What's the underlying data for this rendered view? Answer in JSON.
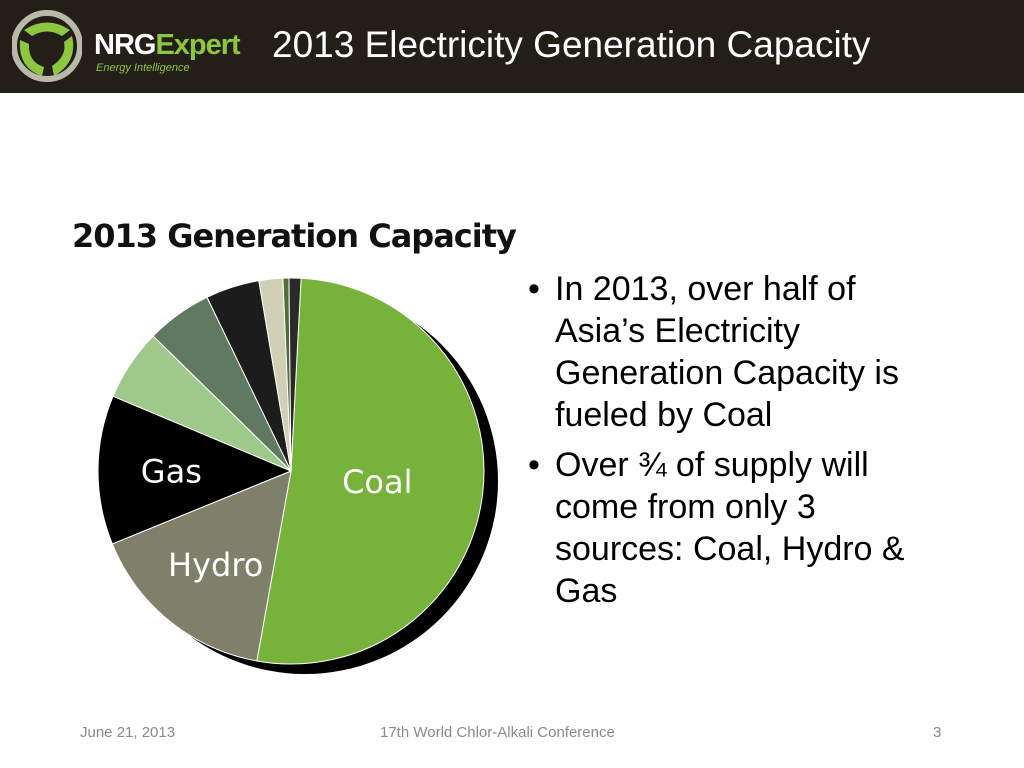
{
  "header": {
    "title": "2013 Electricity Generation Capacity",
    "logo": {
      "brand_nrg": "NRG",
      "brand_expert": "Expert",
      "tagline": "Energy Intelligence"
    }
  },
  "colors": {
    "header_bg": "#231f18",
    "brand_green": "#8dc63f"
  },
  "chart_data": {
    "type": "pie",
    "title": "2013 Generation Capacity",
    "slices": [
      {
        "label": "Coal",
        "value": 52.0,
        "color": "#77b23a",
        "label_color": "#ffffff"
      },
      {
        "label": "Hydro",
        "value": 16.0,
        "color": "#7f806a",
        "label_color": "#ffffff"
      },
      {
        "label": "Gas",
        "value": 12.5,
        "color": "#000000",
        "label_color": "#ffffff"
      },
      {
        "label": "",
        "value": 6.0,
        "color": "#9ec98a"
      },
      {
        "label": "",
        "value": 5.5,
        "color": "#607a62"
      },
      {
        "label": "",
        "value": 4.5,
        "color": "#1c1c1c"
      },
      {
        "label": "",
        "value": 2.0,
        "color": "#d1d0b6"
      },
      {
        "label": "",
        "value": 0.5,
        "color": "#4f6e38"
      },
      {
        "label": "",
        "value": 1.0,
        "color": "#2a2a2a"
      }
    ]
  },
  "bullets": [
    {
      "text": "In 2013, over half of Asia’s Electricity Generation Capacity is fueled by Coal"
    },
    {
      "text": "Over ¾ of supply will come from only 3 sources: Coal, Hydro & Gas"
    }
  ],
  "bullet_symbol": "•",
  "footer": {
    "date": "June 21, 2013",
    "conference": "17th World Chlor-Alkali Conference",
    "page": "3"
  }
}
